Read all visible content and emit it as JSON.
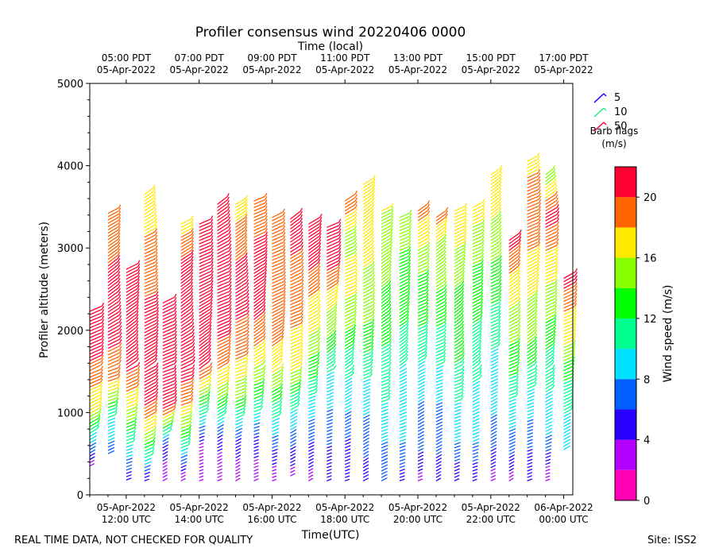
{
  "chart_data": {
    "type": "wind-barb",
    "title": "Profiler consensus wind 20220406 0000",
    "top_axis_label": "Time (local)",
    "xlabel": "Time(UTC)",
    "ylabel": "Profiler altitude (meters)",
    "ylim": [
      0,
      5000
    ],
    "y_ticks": [
      0,
      1000,
      2000,
      3000,
      4000,
      5000
    ],
    "xlim_hours": [
      11.0,
      24.25
    ],
    "bottom_ticks": [
      {
        "hour": 12,
        "line1": "05-Apr-2022",
        "line2": "12:00 UTC"
      },
      {
        "hour": 14,
        "line1": "05-Apr-2022",
        "line2": "14:00 UTC"
      },
      {
        "hour": 16,
        "line1": "05-Apr-2022",
        "line2": "16:00 UTC"
      },
      {
        "hour": 18,
        "line1": "05-Apr-2022",
        "line2": "18:00 UTC"
      },
      {
        "hour": 20,
        "line1": "05-Apr-2022",
        "line2": "20:00 UTC"
      },
      {
        "hour": 22,
        "line1": "05-Apr-2022",
        "line2": "22:00 UTC"
      },
      {
        "hour": 24,
        "line1": "06-Apr-2022",
        "line2": "00:00 UTC"
      }
    ],
    "top_ticks": [
      {
        "hour": 12,
        "line1": "05:00 PDT",
        "line2": "05-Apr-2022"
      },
      {
        "hour": 14,
        "line1": "07:00 PDT",
        "line2": "05-Apr-2022"
      },
      {
        "hour": 16,
        "line1": "09:00 PDT",
        "line2": "05-Apr-2022"
      },
      {
        "hour": 18,
        "line1": "11:00 PDT",
        "line2": "05-Apr-2022"
      },
      {
        "hour": 20,
        "line1": "13:00 PDT",
        "line2": "05-Apr-2022"
      },
      {
        "hour": 22,
        "line1": "15:00 PDT",
        "line2": "05-Apr-2022"
      },
      {
        "hour": 24,
        "line1": "17:00 PDT",
        "line2": "05-Apr-2022"
      }
    ],
    "barb_legend": {
      "items": [
        {
          "label": "5",
          "color": "#2200ff"
        },
        {
          "label": "10",
          "color": "#22ee88"
        },
        {
          "label": "50",
          "color": "#ff0033"
        }
      ],
      "title_line1": "Barb flags",
      "title_line2": "(m/s)"
    },
    "colorbar": {
      "label": "Wind speed (m/s)",
      "min": 0,
      "max": 22,
      "ticks": [
        0,
        4,
        8,
        12,
        16,
        20
      ],
      "bins": [
        {
          "from": 0,
          "to": 2,
          "color": "#ff00b4"
        },
        {
          "from": 2,
          "to": 4,
          "color": "#b400ff"
        },
        {
          "from": 4,
          "to": 6,
          "color": "#2800ff"
        },
        {
          "from": 6,
          "to": 8,
          "color": "#0060ff"
        },
        {
          "from": 8,
          "to": 10,
          "color": "#00e0ff"
        },
        {
          "from": 10,
          "to": 12,
          "color": "#00ff90"
        },
        {
          "from": 12,
          "to": 14,
          "color": "#00ff00"
        },
        {
          "from": 14,
          "to": 16,
          "color": "#88ff00"
        },
        {
          "from": 16,
          "to": 18,
          "color": "#ffe800"
        },
        {
          "from": 18,
          "to": 20,
          "color": "#ff6400"
        },
        {
          "from": 20,
          "to": 22,
          "color": "#ff0030"
        }
      ]
    },
    "profiles": [
      {
        "hour": 11.0,
        "bottom": 350,
        "top": 2250,
        "speeds": [
          3,
          9,
          16,
          18,
          20,
          21,
          21
        ]
      },
      {
        "hour": 11.5,
        "bottom": 500,
        "top": 3450,
        "speeds": [
          7,
          10,
          18,
          20,
          21,
          21,
          19,
          18
        ]
      },
      {
        "hour": 12.0,
        "bottom": 180,
        "top": 2750,
        "speeds": [
          5,
          10,
          16,
          20,
          21,
          21,
          20
        ]
      },
      {
        "hour": 12.5,
        "bottom": 170,
        "top": 3650,
        "speeds": [
          4,
          15,
          21,
          21,
          21,
          19,
          18,
          17
        ]
      },
      {
        "hour": 13.0,
        "bottom": 170,
        "top": 2350,
        "speeds": [
          2,
          6,
          21,
          21,
          21,
          20
        ]
      },
      {
        "hour": 13.5,
        "bottom": 170,
        "top": 3300,
        "speeds": [
          2,
          11,
          18,
          21,
          21,
          21,
          20,
          17
        ]
      },
      {
        "hour": 14.0,
        "bottom": 170,
        "top": 3300,
        "speeds": [
          2,
          4,
          12,
          20,
          21,
          21,
          21,
          20
        ]
      },
      {
        "hour": 14.5,
        "bottom": 170,
        "top": 3550,
        "speeds": [
          2,
          5,
          14,
          19,
          21,
          21,
          21,
          20
        ]
      },
      {
        "hour": 15.0,
        "bottom": 170,
        "top": 3550,
        "speeds": [
          2,
          6,
          14,
          18,
          20,
          21,
          19,
          17
        ]
      },
      {
        "hour": 15.5,
        "bottom": 170,
        "top": 3600,
        "speeds": [
          3,
          5,
          12,
          17,
          20,
          21,
          20,
          19
        ]
      },
      {
        "hour": 16.0,
        "bottom": 170,
        "top": 3400,
        "speeds": [
          2,
          7,
          12,
          17,
          19,
          20,
          19,
          18
        ]
      },
      {
        "hour": 16.5,
        "bottom": 230,
        "top": 3350,
        "speeds": [
          3,
          7,
          11,
          17,
          18,
          19,
          20,
          21
        ]
      },
      {
        "hour": 17.0,
        "bottom": 170,
        "top": 3300,
        "speeds": [
          3,
          6,
          9,
          13,
          16,
          18,
          21,
          21
        ]
      },
      {
        "hour": 17.5,
        "bottom": 170,
        "top": 3250,
        "speeds": [
          4,
          6,
          8,
          10,
          14,
          17,
          21,
          21
        ]
      },
      {
        "hour": 18.0,
        "bottom": 170,
        "top": 3600,
        "speeds": [
          4,
          6,
          9,
          11,
          15,
          17,
          15,
          20
        ]
      },
      {
        "hour": 18.5,
        "bottom": 170,
        "top": 3800,
        "speeds": [
          5,
          7,
          9,
          12,
          15,
          16,
          17,
          18
        ]
      },
      {
        "hour": 19.0,
        "bottom": 170,
        "top": 3450,
        "speeds": [
          6,
          8,
          10,
          11,
          13,
          14,
          15,
          16
        ]
      },
      {
        "hour": 19.5,
        "bottom": 170,
        "top": 3400,
        "speeds": [
          5,
          8,
          9,
          10,
          12,
          13,
          14,
          16
        ]
      },
      {
        "hour": 20.0,
        "bottom": 170,
        "top": 3450,
        "speeds": [
          3,
          7,
          8,
          10,
          12,
          13,
          16,
          19
        ]
      },
      {
        "hour": 20.5,
        "bottom": 170,
        "top": 3400,
        "speeds": [
          4,
          7,
          8,
          10,
          12,
          14,
          15,
          19
        ]
      },
      {
        "hour": 21.0,
        "bottom": 170,
        "top": 3450,
        "speeds": [
          4,
          8,
          10,
          12,
          13,
          14,
          16,
          17
        ]
      },
      {
        "hour": 21.5,
        "bottom": 170,
        "top": 3500,
        "speeds": [
          4,
          8,
          9,
          11,
          12,
          13,
          15,
          17
        ]
      },
      {
        "hour": 22.0,
        "bottom": 170,
        "top": 3900,
        "speeds": [
          3,
          7,
          9,
          10,
          12,
          14,
          16,
          17
        ]
      },
      {
        "hour": 22.5,
        "bottom": 170,
        "top": 3100,
        "speeds": [
          3,
          7,
          9,
          12,
          14,
          16,
          18,
          21
        ]
      },
      {
        "hour": 23.0,
        "bottom": 170,
        "top": 4050,
        "speeds": [
          4,
          7,
          10,
          14,
          16,
          18,
          20,
          17
        ]
      },
      {
        "hour": 23.5,
        "bottom": 170,
        "top": 3900,
        "speeds": [
          2,
          8,
          10,
          12,
          15,
          17,
          21,
          14
        ]
      },
      {
        "hour": 24.0,
        "bottom": 550,
        "top": 2650,
        "speeds": [
          8,
          10,
          12,
          16,
          18,
          21
        ]
      }
    ]
  },
  "footer": {
    "left": "REAL TIME DATA, NOT CHECKED FOR QUALITY",
    "right": "Site: ISS2"
  }
}
